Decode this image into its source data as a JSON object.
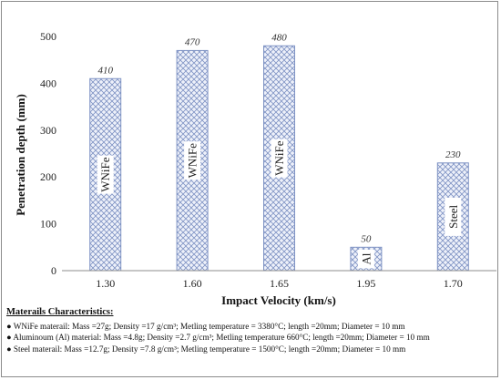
{
  "chart_data": {
    "type": "bar",
    "categories": [
      "1.30",
      "1.60",
      "1.65",
      "1.95",
      "1.70"
    ],
    "values": [
      410,
      470,
      480,
      50,
      230
    ],
    "bar_labels": [
      "WNiFe",
      "WNiFe",
      "WNiFe",
      "Al",
      "Steel"
    ],
    "xlabel": "Impact Velocity (km/s)",
    "ylabel": "Penetration depth (mm)",
    "ylim": [
      0,
      500
    ],
    "yticks": [
      "0",
      "100",
      "200",
      "300",
      "400",
      "500"
    ],
    "grid": false,
    "bar_fill": "crosshatch",
    "bar_color": "#7f93c4"
  },
  "notes": {
    "title": "Materails Characteristics:",
    "lines": [
      "WNiFe materail: Mass =27g; Density =17 g/cm³; Metling temperature = 3380°C; length =20mm; Diameter = 10 mm",
      "Aluminoum (Al) material: Mass =4.8g; Density =2.7 g/cm³; Metling temperature 660°C; length =20mm; Diameter = 10 mm",
      "Steel materail: Mass =12.7g; Density =7.8 g/cm³; Metling temperature = 1500°C; length =20mm; Diameter = 10 mm"
    ],
    "bullet": "●"
  }
}
